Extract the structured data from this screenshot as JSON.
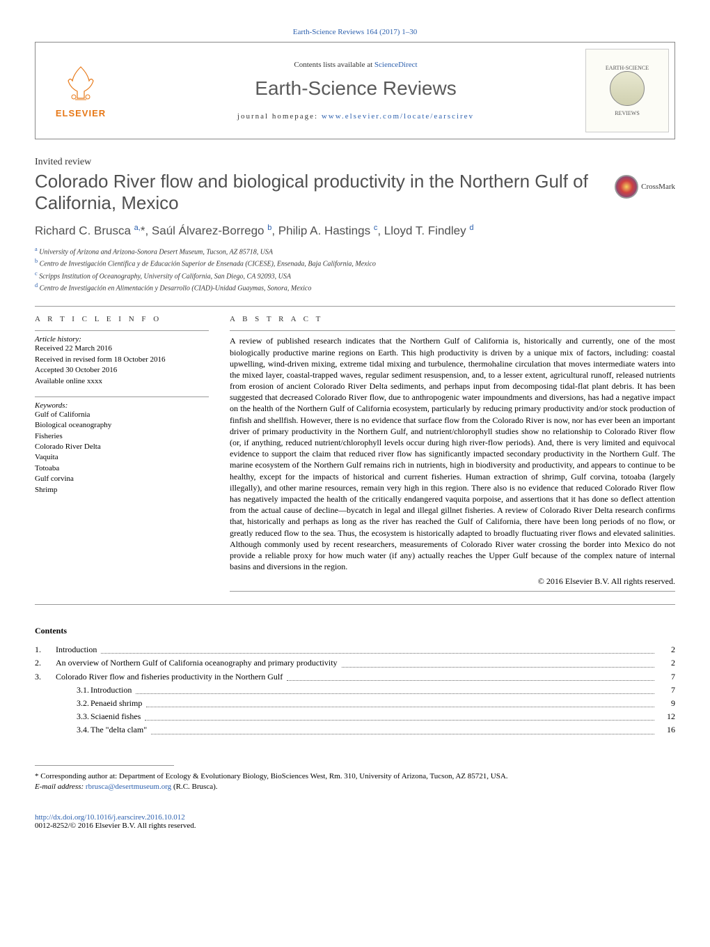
{
  "header_link": "Earth-Science Reviews 164 (2017) 1–30",
  "journal_box": {
    "elsevier": "ELSEVIER",
    "contents_prefix": "Contents lists available at ",
    "contents_link": "ScienceDirect",
    "journal_name": "Earth-Science Reviews",
    "homepage_prefix": "journal homepage: ",
    "homepage_link": "www.elsevier.com/locate/earscirev",
    "cover_top": "EARTH-SCIENCE",
    "cover_bottom": "REVIEWS"
  },
  "invited": "Invited review",
  "title": "Colorado River flow and biological productivity in the Northern Gulf of California, Mexico",
  "crossmark": "CrossMark",
  "authors_html": "Richard C. Brusca <sup>a,</sup>*, Saúl Álvarez-Borrego <sup>b</sup>, Philip A. Hastings <sup>c</sup>, Lloyd T. Findley <sup>d</sup>",
  "affiliations": [
    {
      "sup": "a",
      "text": "University of Arizona and Arizona-Sonora Desert Museum, Tucson, AZ 85718, USA"
    },
    {
      "sup": "b",
      "text": "Centro de Investigación Científica y de Educación Superior de Ensenada (CICESE), Ensenada, Baja California, Mexico"
    },
    {
      "sup": "c",
      "text": "Scripps Institution of Oceanography, University of California, San Diego, CA 92093, USA"
    },
    {
      "sup": "d",
      "text": "Centro de Investigación en Alimentación y Desarrollo (CIAD)-Unidad Guaymas, Sonora, Mexico"
    }
  ],
  "article_info_label": "A R T I C L E   I N F O",
  "abstract_label": "A B S T R A C T",
  "history_label": "Article history:",
  "history": [
    "Received 22 March 2016",
    "Received in revised form 18 October 2016",
    "Accepted 30 October 2016",
    "Available online xxxx"
  ],
  "keywords_label": "Keywords:",
  "keywords": [
    "Gulf of California",
    "Biological oceanography",
    "Fisheries",
    "Colorado River Delta",
    "Vaquita",
    "Totoaba",
    "Gulf corvina",
    "Shrimp"
  ],
  "abstract": "A review of published research indicates that the Northern Gulf of California is, historically and currently, one of the most biologically productive marine regions on Earth. This high productivity is driven by a unique mix of factors, including: coastal upwelling, wind-driven mixing, extreme tidal mixing and turbulence, thermohaline circulation that moves intermediate waters into the mixed layer, coastal-trapped waves, regular sediment resuspension, and, to a lesser extent, agricultural runoff, released nutrients from erosion of ancient Colorado River Delta sediments, and perhaps input from decomposing tidal-flat plant debris. It has been suggested that decreased Colorado River flow, due to anthropogenic water impoundments and diversions, has had a negative impact on the health of the Northern Gulf of California ecosystem, particularly by reducing primary productivity and/or stock production of finfish and shellfish. However, there is no evidence that surface flow from the Colorado River is now, nor has ever been an important driver of primary productivity in the Northern Gulf, and nutrient/chlorophyll studies show no relationship to Colorado River flow (or, if anything, reduced nutrient/chlorophyll levels occur during high river-flow periods). And, there is very limited and equivocal evidence to support the claim that reduced river flow has significantly impacted secondary productivity in the Northern Gulf. The marine ecosystem of the Northern Gulf remains rich in nutrients, high in biodiversity and productivity, and appears to continue to be healthy, except for the impacts of historical and current fisheries. Human extraction of shrimp, Gulf corvina, totoaba (largely illegally), and other marine resources, remain very high in this region. There also is no evidence that reduced Colorado River flow has negatively impacted the health of the critically endangered vaquita porpoise, and assertions that it has done so deflect attention from the actual cause of decline—bycatch in legal and illegal gillnet fisheries. A review of Colorado River Delta research confirms that, historically and perhaps as long as the river has reached the Gulf of California, there have been long periods of no flow, or greatly reduced flow to the sea. Thus, the ecosystem is historically adapted to broadly fluctuating river flows and elevated salinities. Although commonly used by recent researchers, measurements of Colorado River water crossing the border into Mexico do not provide a reliable proxy for how much water (if any) actually reaches the Upper Gulf because of the complex nature of internal basins and diversions in the region.",
  "copyright": "© 2016 Elsevier B.V. All rights reserved.",
  "contents_header": "Contents",
  "toc": [
    {
      "num": "1.",
      "label": "Introduction",
      "page": "2",
      "indent": 0
    },
    {
      "num": "2.",
      "label": "An overview of Northern Gulf of California oceanography and primary productivity",
      "page": "2",
      "indent": 0
    },
    {
      "num": "3.",
      "label": "Colorado River flow and fisheries productivity in the Northern Gulf",
      "page": "7",
      "indent": 0
    },
    {
      "num": "3.1.",
      "label": "Introduction",
      "page": "7",
      "indent": 1
    },
    {
      "num": "3.2.",
      "label": "Penaeid shrimp",
      "page": "9",
      "indent": 1
    },
    {
      "num": "3.3.",
      "label": "Sciaenid fishes",
      "page": "12",
      "indent": 1
    },
    {
      "num": "3.4.",
      "label": "The \"delta clam\"",
      "page": "16",
      "indent": 1
    }
  ],
  "footnote": {
    "star": "*",
    "text": "Corresponding author at: Department of Ecology & Evolutionary Biology, BioSciences West, Rm. 310, University of Arizona, Tucson, AZ 85721, USA.",
    "email_label": "E-mail address: ",
    "email": "rbrusca@desertmuseum.org",
    "email_post": " (R.C. Brusca)."
  },
  "doi": {
    "link": "http://dx.doi.org/10.1016/j.earscirev.2016.10.012",
    "issn": "0012-8252/© 2016 Elsevier B.V. All rights reserved."
  },
  "colors": {
    "link": "#2b5fad",
    "elsevier_orange": "#e77817",
    "title_gray": "#505050"
  }
}
